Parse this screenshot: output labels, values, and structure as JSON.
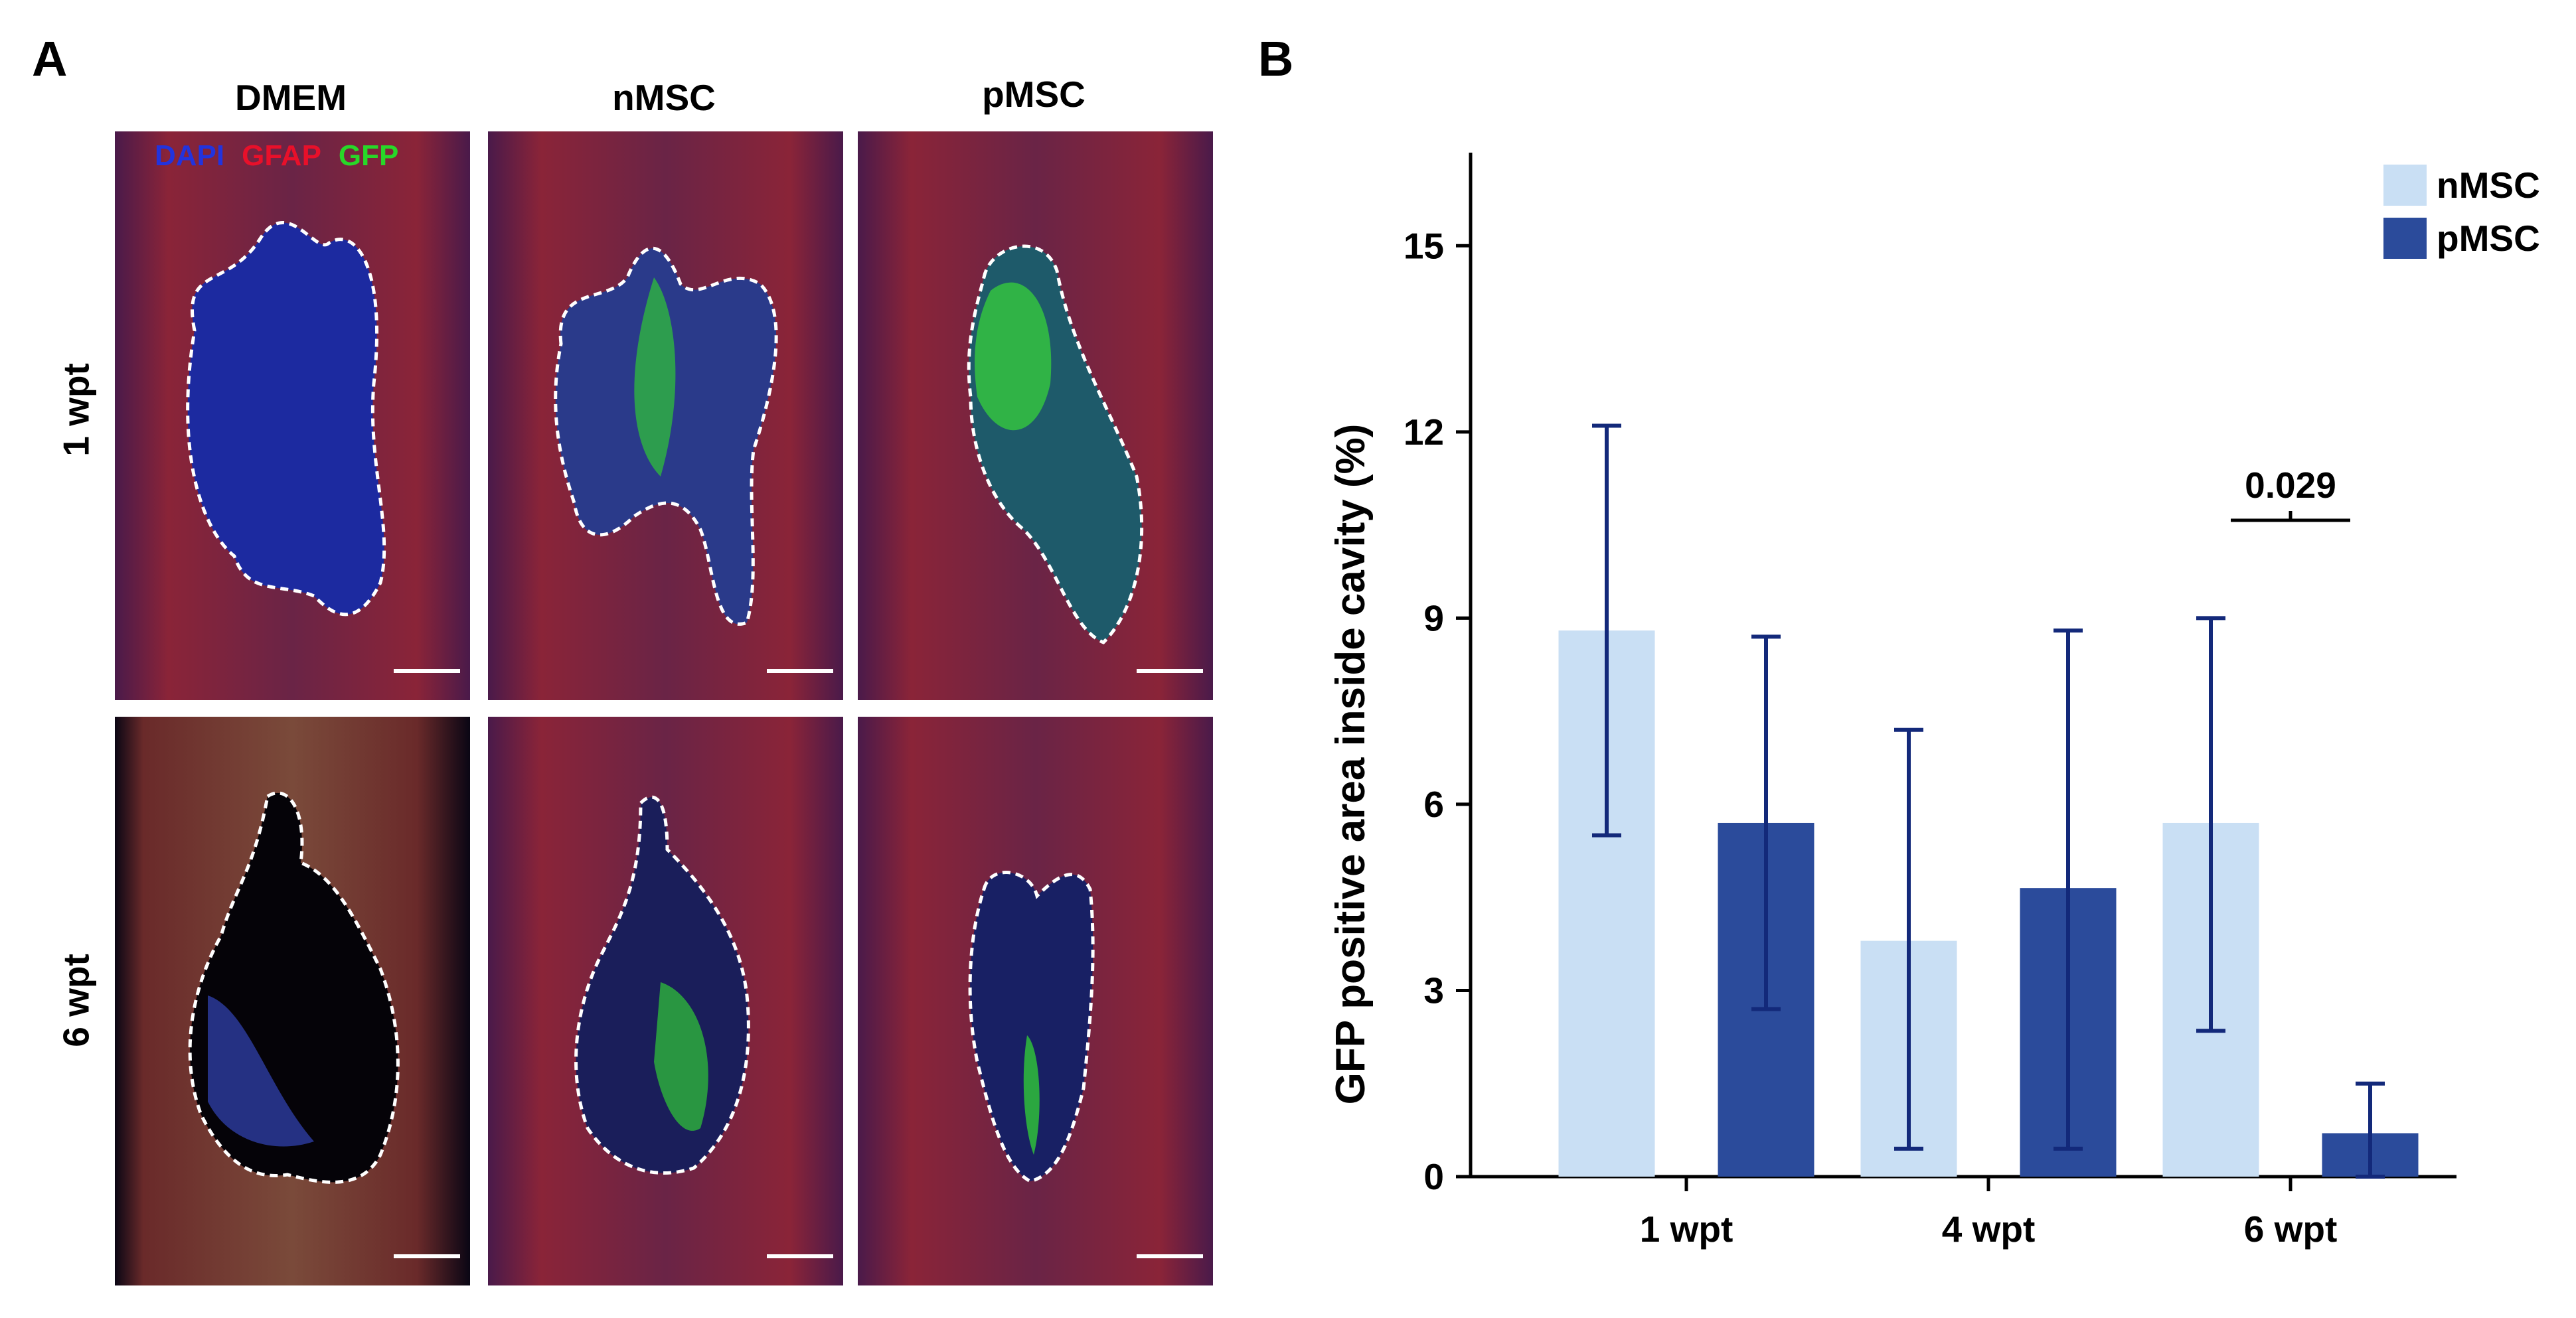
{
  "panel_a": {
    "letter": "A",
    "columns": [
      "DMEM",
      "nMSC",
      "pMSC"
    ],
    "rows": [
      "1 wpt",
      "6 wpt"
    ],
    "stain_legend": {
      "dapi": "DAPI",
      "gfap": "GFAP",
      "gfp": "GFP",
      "colors": {
        "dapi": "#2233dd",
        "gfap": "#e8102a",
        "gfp": "#28d828"
      }
    }
  },
  "panel_b": {
    "letter": "B"
  },
  "chart_data": {
    "type": "bar",
    "title": "",
    "xlabel": "",
    "ylabel": "GFP positive area inside cavity (%)",
    "categories": [
      "1 wpt",
      "4 wpt",
      "6 wpt"
    ],
    "ylim": [
      0,
      16.5
    ],
    "yticks": [
      0,
      3,
      6,
      9,
      12,
      15
    ],
    "legend_position": "top-right",
    "series": [
      {
        "name": "nMSC",
        "color": "#c9dff4",
        "values": [
          8.8,
          3.8,
          5.7
        ],
        "err_low": [
          5.5,
          0.45,
          2.35
        ],
        "err_high": [
          12.1,
          7.2,
          9.0
        ]
      },
      {
        "name": "pMSC",
        "color": "#2b4b9b",
        "values": [
          5.7,
          4.65,
          0.7
        ],
        "err_low": [
          2.7,
          0.45,
          0.0
        ],
        "err_high": [
          8.7,
          8.8,
          1.5
        ]
      }
    ],
    "error_bar_color": "#13297a",
    "annotations": [
      {
        "category": "6 wpt",
        "text": "0.029"
      }
    ]
  }
}
